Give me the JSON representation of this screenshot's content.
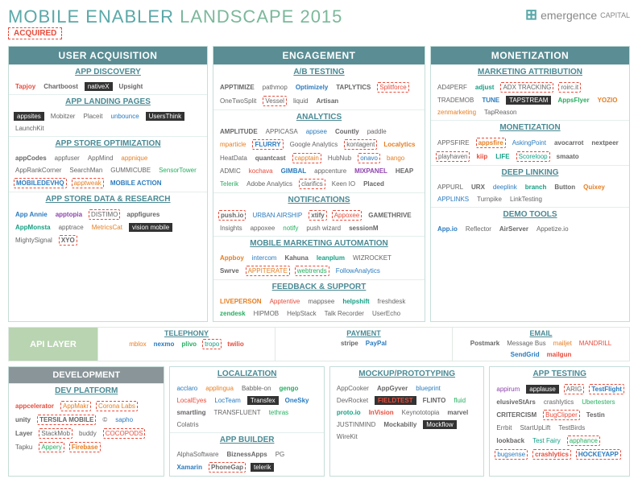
{
  "title": {
    "p1": "MOBILE ENABLER",
    "p2": "LANDSCAPE 2015"
  },
  "brand": "emergence",
  "acquired": "ACQUIRED",
  "topCols": [
    {
      "head": "USER ACQUISITION",
      "secs": [
        {
          "h": "APP DISCOVERY",
          "items": [
            {
              "t": "Tapjoy",
              "c": "red b"
            },
            {
              "t": "Chartboost",
              "c": "b"
            },
            {
              "t": "nativeX",
              "c": "dark"
            },
            {
              "t": "Upsight",
              "c": "b"
            }
          ]
        },
        {
          "h": "APP LANDING PAGES",
          "items": [
            {
              "t": "appsites",
              "c": "dark"
            },
            {
              "t": "Mobitzer"
            },
            {
              "t": "Placeit"
            },
            {
              "t": "unbounce",
              "c": "blue"
            },
            {
              "t": "UsersThink",
              "c": "dark"
            },
            {
              "t": "LaunchKit"
            },
            {
              "t": ""
            }
          ]
        },
        {
          "h": "APP STORE OPTIMIZATION",
          "items": [
            {
              "t": "appCodes",
              "c": "b"
            },
            {
              "t": "appfuser"
            },
            {
              "t": "AppMind"
            },
            {
              "t": "appnique",
              "c": "orange"
            },
            {
              "t": "AppRankCorner"
            },
            {
              "t": "SearchMan"
            },
            {
              "t": "GUMMICUBE"
            },
            {
              "t": "SensorTower",
              "c": "green"
            },
            {
              "t": "MOBILEDEVHQ",
              "c": "dash b blue"
            },
            {
              "t": "apptweak",
              "c": "dash orange"
            },
            {
              "t": "MOBILE ACTION",
              "c": "blue b"
            }
          ]
        },
        {
          "h": "APP STORE DATA & RESEARCH",
          "items": [
            {
              "t": "App Annie",
              "c": "b blue"
            },
            {
              "t": "apptopia",
              "c": "purple b"
            },
            {
              "t": "DISTIMO",
              "c": "dash"
            },
            {
              "t": "appfigures",
              "c": "b"
            },
            {
              "t": "AppMonsta",
              "c": "teal b"
            },
            {
              "t": "apptrace"
            },
            {
              "t": "MetricsCat",
              "c": "orange"
            },
            {
              "t": "vision mobile",
              "c": "dark"
            },
            {
              "t": "MightySignal"
            },
            {
              "t": "XYO",
              "c": "dash b"
            }
          ]
        }
      ]
    },
    {
      "head": "ENGAGEMENT",
      "secs": [
        {
          "h": "A/B TESTING",
          "items": [
            {
              "t": "APPTIMIZE",
              "c": "b"
            },
            {
              "t": "pathmop"
            },
            {
              "t": "Optimizely",
              "c": "blue b"
            },
            {
              "t": "TAPLYTICS",
              "c": "b"
            },
            {
              "t": "Splitforce",
              "c": "dash red"
            },
            {
              "t": "OneTwoSplit"
            },
            {
              "t": "Vessel",
              "c": "dash"
            },
            {
              "t": "liquid"
            },
            {
              "t": "Artisan",
              "c": "b"
            }
          ]
        },
        {
          "h": "ANALYTICS",
          "items": [
            {
              "t": "AMPLITUDE",
              "c": "b"
            },
            {
              "t": "APPICASA"
            },
            {
              "t": "appsee",
              "c": "blue"
            },
            {
              "t": "Countly",
              "c": "b"
            },
            {
              "t": "paddle"
            },
            {
              "t": "mparticle",
              "c": "orange"
            },
            {
              "t": "FLURRY",
              "c": "dash blue b"
            },
            {
              "t": "Google Analytics"
            },
            {
              "t": "kontagent",
              "c": "dash"
            },
            {
              "t": "Localytics",
              "c": "b orange"
            },
            {
              "t": "HeatData"
            },
            {
              "t": "quantcast",
              "c": "b"
            },
            {
              "t": "capptain",
              "c": "dash orange"
            },
            {
              "t": "HubNub"
            },
            {
              "t": "onavo",
              "c": "dash blue"
            },
            {
              "t": "bango",
              "c": "orange"
            },
            {
              "t": "ADMIC"
            },
            {
              "t": "kochava",
              "c": "red"
            },
            {
              "t": "GIMBAL",
              "c": "blue b"
            },
            {
              "t": "appcenture"
            },
            {
              "t": "MIXPANEL",
              "c": "purple b"
            },
            {
              "t": "HEAP",
              "c": "b"
            },
            {
              "t": "Telerik",
              "c": "green"
            },
            {
              "t": "Adobe Analytics"
            },
            {
              "t": "clarifics",
              "c": "dash"
            },
            {
              "t": "Keen IO"
            },
            {
              "t": "Placed",
              "c": "b"
            }
          ]
        },
        {
          "h": "NOTIFICATIONS",
          "items": [
            {
              "t": "push.io",
              "c": "dash b"
            },
            {
              "t": "URBAN AIRSHIP",
              "c": "blue"
            },
            {
              "t": "xtify",
              "c": "dash b"
            },
            {
              "t": "Appoxee",
              "c": "dash red"
            },
            {
              "t": "GAMETHRIVE",
              "c": "b"
            },
            {
              "t": "Insights"
            },
            {
              "t": "appoxee"
            },
            {
              "t": "notify",
              "c": "green"
            },
            {
              "t": "push wizard"
            },
            {
              "t": "sessionM",
              "c": "b"
            }
          ]
        },
        {
          "h": "MOBILE MARKETING AUTOMATION",
          "items": [
            {
              "t": "Appboy",
              "c": "orange b"
            },
            {
              "t": "intercom",
              "c": "blue"
            },
            {
              "t": "Kahuna",
              "c": "b"
            },
            {
              "t": "leanplum",
              "c": "teal b"
            },
            {
              "t": "WIZROCKET"
            },
            {
              "t": "Swrve",
              "c": "b"
            },
            {
              "t": "APPITERATE",
              "c": "dash orange"
            },
            {
              "t": "webtrends",
              "c": "dash green"
            },
            {
              "t": "FollowAnalytics",
              "c": "blue"
            }
          ]
        },
        {
          "h": "FEEDBACK & SUPPORT",
          "items": [
            {
              "t": "LIVEPERSON",
              "c": "orange b"
            },
            {
              "t": "Apptentive",
              "c": "red"
            },
            {
              "t": "mappsee"
            },
            {
              "t": "helpshift",
              "c": "teal b"
            },
            {
              "t": "freshdesk"
            },
            {
              "t": "zendesk",
              "c": "green b"
            },
            {
              "t": "HIPMOB"
            },
            {
              "t": "HelpStack"
            },
            {
              "t": "Talk Recorder"
            },
            {
              "t": "UserEcho"
            }
          ]
        }
      ]
    },
    {
      "head": "MONETIZATION",
      "secs": [
        {
          "h": "MARKETING ATTRIBUTION",
          "items": [
            {
              "t": "AD4PERF"
            },
            {
              "t": "adjust",
              "c": "teal b"
            },
            {
              "t": "ADX TRACKING",
              "c": "dash"
            },
            {
              "t": "roirc.it",
              "c": "dash"
            },
            {
              "t": "TRADEMOB"
            },
            {
              "t": "TUNE",
              "c": "blue b"
            },
            {
              "t": "TAPSTREAM",
              "c": "dark"
            },
            {
              "t": "AppsFlyer",
              "c": "green b"
            },
            {
              "t": "YOZIO",
              "c": "orange b"
            },
            {
              "t": "zenmarketing",
              "c": "orange"
            },
            {
              "t": "TapReason"
            }
          ]
        },
        {
          "h": "MONETIZATION",
          "items": [
            {
              "t": "APPSFIRE"
            },
            {
              "t": "appsfire",
              "c": "dash orange b"
            },
            {
              "t": "AskingPoint",
              "c": "blue"
            },
            {
              "t": "avocarrot",
              "c": "b"
            },
            {
              "t": "nextpeer",
              "c": "b"
            },
            {
              "t": "playhaven",
              "c": "dash"
            },
            {
              "t": "kiip",
              "c": "red b"
            },
            {
              "t": "LIFE",
              "c": "teal b"
            },
            {
              "t": "Scoreloop",
              "c": "dash teal"
            },
            {
              "t": "smaato",
              "c": "b"
            }
          ]
        },
        {
          "h": "DEEP LINKING",
          "items": [
            {
              "t": "APPURL"
            },
            {
              "t": "URX",
              "c": "b"
            },
            {
              "t": "deeplink",
              "c": "blue"
            },
            {
              "t": "branch",
              "c": "teal b"
            },
            {
              "t": "Button",
              "c": "b"
            },
            {
              "t": "Quixey",
              "c": "orange b"
            },
            {
              "t": "APPLINKS",
              "c": "blue"
            },
            {
              "t": "Turnpike"
            },
            {
              "t": "LinkTesting"
            }
          ]
        },
        {
          "h": "DEMO TOOLS",
          "items": [
            {
              "t": "App.io",
              "c": "blue b"
            },
            {
              "t": "Reflector"
            },
            {
              "t": "AirServer",
              "c": "b"
            },
            {
              "t": "Appetize.io"
            }
          ]
        }
      ]
    }
  ],
  "api": {
    "label": "API LAYER",
    "secs": [
      {
        "h": "TELEPHONY",
        "items": [
          {
            "t": "mblox",
            "c": "orange"
          },
          {
            "t": "nexmo",
            "c": "blue b"
          },
          {
            "t": "plivo",
            "c": "green b"
          },
          {
            "t": "tropo",
            "c": "dash teal"
          },
          {
            "t": "twilio",
            "c": "red b"
          }
        ]
      },
      {
        "h": "PAYMENT",
        "items": [
          {
            "t": "stripe",
            "c": "b"
          },
          {
            "t": "PayPal",
            "c": "blue b"
          }
        ]
      },
      {
        "h": "EMAIL",
        "items": [
          {
            "t": "Postmark",
            "c": "b"
          },
          {
            "t": "Message Bus"
          },
          {
            "t": "mailjet",
            "c": "orange"
          },
          {
            "t": "MANDRILL",
            "c": "red"
          },
          {
            "t": "SendGrid",
            "c": "blue b"
          },
          {
            "t": "mailgun",
            "c": "red b"
          }
        ]
      }
    ]
  },
  "bottom": [
    {
      "head": "DEVELOPMENT",
      "headClass": "dev",
      "secs": [
        {
          "h": "DEV PLATFORM",
          "items": [
            {
              "t": "appcelerator",
              "c": "red b"
            },
            {
              "t": "AppMakr",
              "c": "dash orange"
            },
            {
              "t": "Corona Labs",
              "c": "dash orange"
            },
            {
              "t": "unity",
              "c": "b"
            },
            {
              "t": "TERSILA MOBILE",
              "c": "dash b"
            },
            {
              "t": "©"
            },
            {
              "t": "sapho",
              "c": "blue"
            },
            {
              "t": "Layer",
              "c": "b"
            },
            {
              "t": "StackMob",
              "c": "dash"
            },
            {
              "t": "buddy"
            },
            {
              "t": "COCOPODS",
              "c": "dash red"
            },
            {
              "t": "Tapku"
            },
            {
              "t": "Appery",
              "c": "dash green"
            },
            {
              "t": "Firebase",
              "c": "dash orange b"
            }
          ]
        }
      ]
    },
    {
      "secs": [
        {
          "h": "LOCALIZATION",
          "items": [
            {
              "t": "acclaro",
              "c": "blue"
            },
            {
              "t": "applingua",
              "c": "orange"
            },
            {
              "t": "Babble-on"
            },
            {
              "t": "gengo",
              "c": "green b"
            },
            {
              "t": "LocalEyes",
              "c": "red"
            },
            {
              "t": "LocTeam",
              "c": "blue"
            },
            {
              "t": "Transfex",
              "c": "dark"
            },
            {
              "t": "OneSky",
              "c": "blue b"
            },
            {
              "t": "smartling",
              "c": "b"
            },
            {
              "t": "TRANSFLUENT"
            },
            {
              "t": "tethras",
              "c": "green"
            },
            {
              "t": "Colatris"
            }
          ]
        },
        {
          "h": "APP BUILDER",
          "items": [
            {
              "t": "AlphaSoftware"
            },
            {
              "t": "BiznessApps",
              "c": "b"
            },
            {
              "t": "PG"
            },
            {
              "t": "Xamarin",
              "c": "blue b"
            },
            {
              "t": "PhoneGap",
              "c": "dash b"
            },
            {
              "t": "telerik",
              "c": "dark"
            }
          ]
        }
      ]
    },
    {
      "secs": [
        {
          "h": "MOCKUP/PROTOTYPING",
          "items": [
            {
              "t": "AppCooker"
            },
            {
              "t": "AppGyver",
              "c": "b"
            },
            {
              "t": "blueprint",
              "c": "blue"
            },
            {
              "t": "DevRocket"
            },
            {
              "t": "FIELDTEST",
              "c": "red b dark"
            },
            {
              "t": "FLINTO",
              "c": "b"
            },
            {
              "t": "fluid",
              "c": "green"
            },
            {
              "t": "proto.io",
              "c": "teal b"
            },
            {
              "t": "InVision",
              "c": "red b"
            },
            {
              "t": "Keynototopia"
            },
            {
              "t": "marvel",
              "c": "b"
            },
            {
              "t": "JUSTINMIND"
            },
            {
              "t": "Mockabilly",
              "c": "b"
            },
            {
              "t": "Mockflow",
              "c": "dark"
            },
            {
              "t": "WireKit"
            }
          ]
        }
      ]
    },
    {
      "secs": [
        {
          "h": "APP TESTING",
          "items": [
            {
              "t": "appirum",
              "c": "purple"
            },
            {
              "t": "applause",
              "c": "dark"
            },
            {
              "t": "ARIG",
              "c": "dash"
            },
            {
              "t": "TestFlight",
              "c": "dash blue b"
            },
            {
              "t": "elusiveStArs",
              "c": "b"
            },
            {
              "t": "crashlytics"
            },
            {
              "t": "Ubertesters",
              "c": "green"
            },
            {
              "t": "CRITERCISM",
              "c": "b"
            },
            {
              "t": "BugClipper",
              "c": "dash red"
            },
            {
              "t": "Testin",
              "c": "b"
            },
            {
              "t": "Errbit"
            },
            {
              "t": "StartUpLift"
            },
            {
              "t": "TestBirds"
            },
            {
              "t": ""
            },
            {
              "t": "lookback",
              "c": "b"
            },
            {
              "t": "Test Fairy",
              "c": "teal"
            },
            {
              "t": "apphance",
              "c": "dash green"
            },
            {
              "t": "bugsense",
              "c": "dash blue"
            },
            {
              "t": "crashlytics",
              "c": "dash red b"
            },
            {
              "t": "HOCKEYAPP",
              "c": "dash blue b"
            }
          ]
        }
      ]
    }
  ]
}
